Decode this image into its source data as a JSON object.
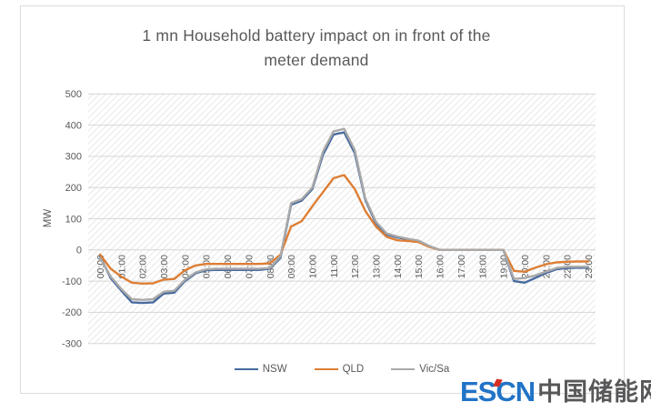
{
  "title": {
    "lines": [
      "1 mn Household battery impact on  in front of the",
      "meter demand"
    ]
  },
  "watermark": {
    "latin": "ESCN",
    "cjk": "中国储能网",
    "blue": "#2173C6",
    "red": "#D93025",
    "dark": "#58585A"
  },
  "colors": {
    "text": "#595959",
    "gridline": "#d6d6d6",
    "hatch_stripe": "#e4e4e4",
    "border": "#dcdcdc"
  },
  "chart_data": {
    "type": "line",
    "title": "1 mn Household battery impact on  in front of the meter demand",
    "xlabel": "",
    "ylabel": "MW",
    "ylim": [
      -300,
      500
    ],
    "ytick_step": 100,
    "grid": "horizontal",
    "plot_background": "diagonal-hatch",
    "legend_position": "bottom",
    "x_tick_labels": [
      "00:00",
      "01:00",
      "02:00",
      "03:00",
      "04:00",
      "05:00",
      "06:00",
      "07:00",
      "08:00",
      "09:00",
      "10:00",
      "11:00",
      "12:00",
      "13:00",
      "14:00",
      "15:00",
      "16:00",
      "17:00",
      "18:00",
      "19:00",
      "20:00",
      "21:00",
      "22:00",
      "23:00"
    ],
    "x": [
      0,
      0.5,
      1,
      1.5,
      2,
      2.5,
      3,
      3.5,
      4,
      4.5,
      5,
      5.5,
      6,
      6.5,
      7,
      7.5,
      8,
      8.5,
      9,
      9.5,
      10,
      10.5,
      11,
      11.5,
      12,
      12.5,
      13,
      13.5,
      14,
      14.5,
      15,
      15.5,
      16,
      16.5,
      17,
      17.5,
      18,
      18.5,
      19,
      19.5,
      20,
      20.5,
      21,
      21.5,
      22,
      22.5,
      23
    ],
    "series": [
      {
        "name": "NSW",
        "color": "#476A9F",
        "values": [
          -20,
          -90,
          -130,
          -168,
          -170,
          -168,
          -140,
          -137,
          -100,
          -75,
          -65,
          -64,
          -64,
          -64,
          -64,
          -64,
          -60,
          -25,
          145,
          158,
          195,
          305,
          370,
          377,
          310,
          160,
          85,
          50,
          40,
          34,
          28,
          12,
          0,
          0,
          0,
          0,
          0,
          0,
          0,
          -100,
          -105,
          -90,
          -74,
          -62,
          -58,
          -57,
          -57
        ]
      },
      {
        "name": "QLD",
        "color": "#DD7E35",
        "values": [
          -15,
          -60,
          -85,
          -105,
          -108,
          -107,
          -95,
          -93,
          -65,
          -50,
          -45,
          -45,
          -45,
          -45,
          -45,
          -45,
          -43,
          -15,
          75,
          92,
          140,
          185,
          230,
          240,
          195,
          125,
          75,
          42,
          31,
          29,
          25,
          10,
          0,
          0,
          0,
          0,
          0,
          0,
          0,
          -67,
          -70,
          -57,
          -46,
          -40,
          -38,
          -37,
          -37
        ]
      },
      {
        "name": "Vic/Sa",
        "color": "#A9A9A9",
        "values": [
          -25,
          -85,
          -125,
          -158,
          -160,
          -158,
          -134,
          -131,
          -96,
          -72,
          -62,
          -60,
          -60,
          -60,
          -60,
          -60,
          -58,
          -20,
          150,
          163,
          200,
          315,
          380,
          388,
          320,
          165,
          90,
          53,
          43,
          36,
          30,
          13,
          0,
          0,
          0,
          0,
          0,
          0,
          0,
          -93,
          -90,
          -82,
          -70,
          -58,
          -54,
          -54,
          -54
        ]
      }
    ]
  }
}
